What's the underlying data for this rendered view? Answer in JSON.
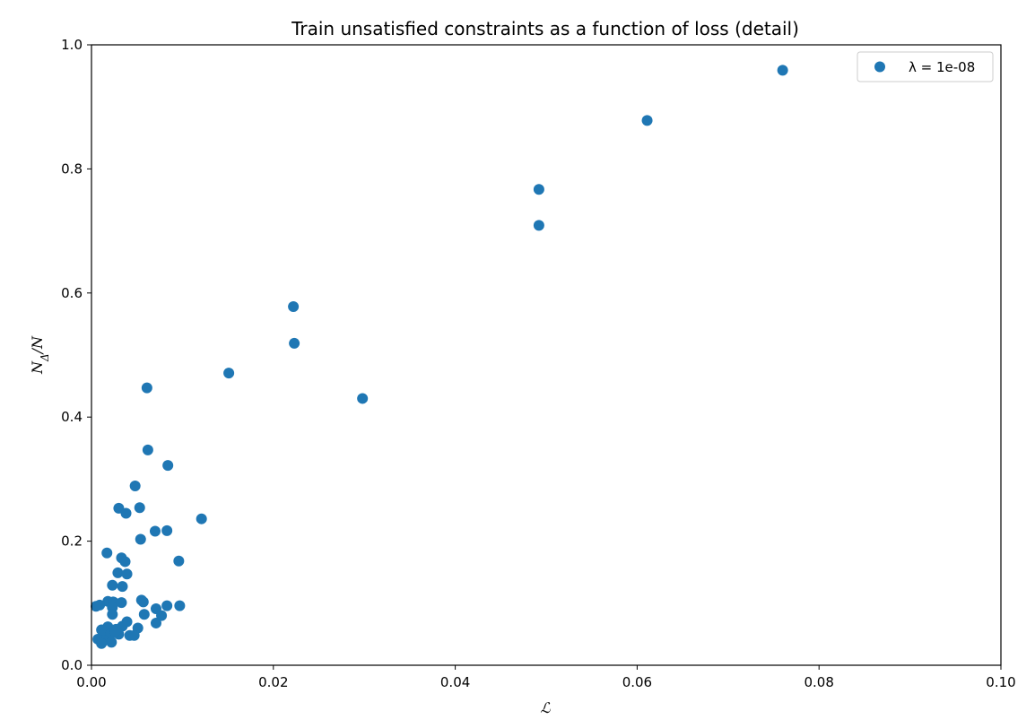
{
  "chart_data": {
    "type": "scatter",
    "title": "Train unsatisfied constraints as a function of loss (detail)",
    "xlabel": "ℒ",
    "ylabel": "N_Δ/N",
    "ylabel_parts": {
      "base": "N",
      "sub": "Δ",
      "rest": "/N"
    },
    "xlim": [
      0.0,
      0.1
    ],
    "ylim": [
      0.0,
      1.0
    ],
    "xticks": [
      0.0,
      0.02,
      0.04,
      0.06,
      0.08,
      0.1
    ],
    "xtick_labels": [
      "0.00",
      "0.02",
      "0.04",
      "0.06",
      "0.08",
      "0.10"
    ],
    "yticks": [
      0.0,
      0.2,
      0.4,
      0.6,
      0.8,
      1.0
    ],
    "ytick_labels": [
      "0.0",
      "0.2",
      "0.4",
      "0.6",
      "0.8",
      "1.0"
    ],
    "grid": false,
    "legend_position": "top-right",
    "series": [
      {
        "name": "λ = 1e-08",
        "color": "#1f77b4",
        "points": [
          [
            0.076,
            0.959
          ],
          [
            0.0611,
            0.878
          ],
          [
            0.0492,
            0.767
          ],
          [
            0.0492,
            0.709
          ],
          [
            0.0222,
            0.578
          ],
          [
            0.0223,
            0.519
          ],
          [
            0.0151,
            0.471
          ],
          [
            0.0298,
            0.43
          ],
          [
            0.0061,
            0.447
          ],
          [
            0.0062,
            0.347
          ],
          [
            0.0084,
            0.322
          ],
          [
            0.0048,
            0.289
          ],
          [
            0.003,
            0.253
          ],
          [
            0.0038,
            0.245
          ],
          [
            0.0053,
            0.254
          ],
          [
            0.0121,
            0.236
          ],
          [
            0.007,
            0.216
          ],
          [
            0.0083,
            0.217
          ],
          [
            0.0054,
            0.203
          ],
          [
            0.0017,
            0.181
          ],
          [
            0.0033,
            0.173
          ],
          [
            0.0037,
            0.167
          ],
          [
            0.0096,
            0.168
          ],
          [
            0.0029,
            0.149
          ],
          [
            0.0039,
            0.147
          ],
          [
            0.0023,
            0.129
          ],
          [
            0.0034,
            0.127
          ],
          [
            0.0018,
            0.103
          ],
          [
            0.0024,
            0.102
          ],
          [
            0.0033,
            0.101
          ],
          [
            0.0055,
            0.105
          ],
          [
            0.0057,
            0.102
          ],
          [
            0.0005,
            0.095
          ],
          [
            0.0009,
            0.097
          ],
          [
            0.0023,
            0.093
          ],
          [
            0.0071,
            0.091
          ],
          [
            0.0083,
            0.096
          ],
          [
            0.0097,
            0.096
          ],
          [
            0.0023,
            0.082
          ],
          [
            0.0058,
            0.082
          ],
          [
            0.0077,
            0.08
          ],
          [
            0.0039,
            0.07
          ],
          [
            0.0071,
            0.068
          ],
          [
            0.0018,
            0.062
          ],
          [
            0.0027,
            0.058
          ],
          [
            0.0034,
            0.063
          ],
          [
            0.0051,
            0.06
          ],
          [
            0.0011,
            0.057
          ],
          [
            0.0015,
            0.052
          ],
          [
            0.0021,
            0.05
          ],
          [
            0.003,
            0.05
          ],
          [
            0.0042,
            0.048
          ],
          [
            0.0047,
            0.048
          ],
          [
            0.0007,
            0.042
          ],
          [
            0.0014,
            0.04
          ],
          [
            0.0022,
            0.037
          ],
          [
            0.0011,
            0.035
          ],
          [
            0.0026,
            0.054
          ]
        ]
      }
    ]
  }
}
